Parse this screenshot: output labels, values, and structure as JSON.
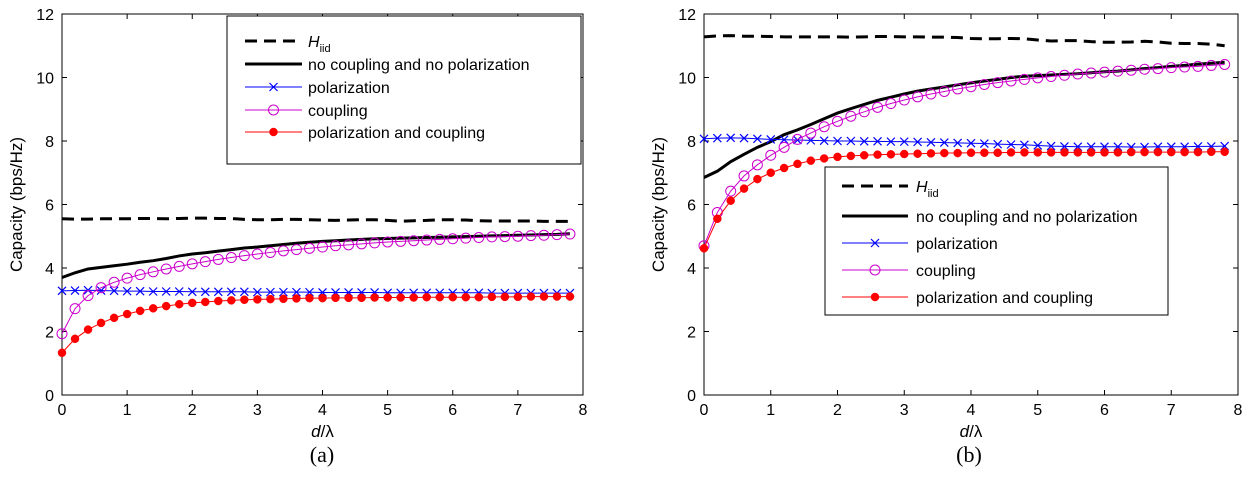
{
  "chart_data": [
    {
      "type": "line",
      "panel_label": "(a)",
      "xlabel_italic": "d",
      "xlabel_rest": "/λ",
      "ylabel": "Capacity (bps/Hz)",
      "xlim": [
        0,
        8
      ],
      "ylim": [
        0,
        12
      ],
      "xticks": [
        "0",
        "1",
        "2",
        "3",
        "4",
        "5",
        "6",
        "7",
        "8"
      ],
      "yticks": [
        "0",
        "2",
        "4",
        "6",
        "8",
        "10",
        "12"
      ],
      "grid": false,
      "legend_position": "top-right",
      "x": [
        0,
        0.2,
        0.4,
        0.6,
        0.8,
        1.0,
        1.2,
        1.4,
        1.6,
        1.8,
        2.0,
        2.2,
        2.4,
        2.6,
        2.8,
        3.0,
        3.2,
        3.4,
        3.6,
        3.8,
        4.0,
        4.2,
        4.4,
        4.6,
        4.8,
        5.0,
        5.2,
        5.4,
        5.6,
        5.8,
        6.0,
        6.2,
        6.4,
        6.6,
        6.8,
        7.0,
        7.2,
        7.4,
        7.6,
        7.8
      ],
      "series": [
        {
          "name_main": "H",
          "name_sub": "iid",
          "style": "dashed",
          "color": "#000000",
          "marker": "none",
          "values": [
            5.55,
            5.54,
            5.54,
            5.55,
            5.55,
            5.55,
            5.56,
            5.56,
            5.55,
            5.56,
            5.57,
            5.57,
            5.56,
            5.56,
            5.53,
            5.52,
            5.52,
            5.53,
            5.53,
            5.52,
            5.51,
            5.5,
            5.51,
            5.52,
            5.52,
            5.5,
            5.47,
            5.49,
            5.5,
            5.52,
            5.52,
            5.51,
            5.49,
            5.48,
            5.48,
            5.48,
            5.48,
            5.47,
            5.47,
            5.47
          ]
        },
        {
          "name": "no coupling and no polarization",
          "style": "solid-thick",
          "color": "#000000",
          "marker": "none",
          "values": [
            3.7,
            3.85,
            3.97,
            4.02,
            4.07,
            4.12,
            4.18,
            4.23,
            4.3,
            4.38,
            4.44,
            4.48,
            4.53,
            4.58,
            4.63,
            4.66,
            4.7,
            4.74,
            4.78,
            4.81,
            4.84,
            4.86,
            4.88,
            4.9,
            4.92,
            4.93,
            4.94,
            4.95,
            4.96,
            4.97,
            4.98,
            4.99,
            5.0,
            5.01,
            5.02,
            5.03,
            5.04,
            5.05,
            5.06,
            5.08
          ]
        },
        {
          "name": "polarization",
          "style": "solid",
          "color": "#0000ff",
          "marker": "x",
          "values": [
            3.28,
            3.29,
            3.3,
            3.29,
            3.28,
            3.27,
            3.27,
            3.26,
            3.26,
            3.26,
            3.25,
            3.25,
            3.25,
            3.25,
            3.25,
            3.24,
            3.24,
            3.24,
            3.24,
            3.24,
            3.23,
            3.23,
            3.23,
            3.23,
            3.23,
            3.22,
            3.22,
            3.22,
            3.22,
            3.22,
            3.22,
            3.22,
            3.22,
            3.21,
            3.21,
            3.21,
            3.21,
            3.21,
            3.21,
            3.21
          ]
        },
        {
          "name": "coupling",
          "style": "solid",
          "color": "#cc00cc",
          "marker": "open-circle",
          "values": [
            1.93,
            2.72,
            3.13,
            3.38,
            3.55,
            3.68,
            3.79,
            3.88,
            3.97,
            4.05,
            4.13,
            4.2,
            4.27,
            4.33,
            4.39,
            4.44,
            4.49,
            4.54,
            4.58,
            4.62,
            4.66,
            4.7,
            4.73,
            4.76,
            4.79,
            4.82,
            4.84,
            4.86,
            4.88,
            4.9,
            4.92,
            4.94,
            4.96,
            4.98,
            4.99,
            5.0,
            5.02,
            5.03,
            5.05,
            5.07
          ]
        },
        {
          "name": "polarization and coupling",
          "style": "solid",
          "color": "#ff0000",
          "marker": "filled-circle",
          "values": [
            1.33,
            1.77,
            2.06,
            2.27,
            2.43,
            2.55,
            2.65,
            2.73,
            2.8,
            2.86,
            2.9,
            2.93,
            2.96,
            2.98,
            3.0,
            3.01,
            3.02,
            3.03,
            3.04,
            3.05,
            3.05,
            3.06,
            3.06,
            3.06,
            3.07,
            3.07,
            3.07,
            3.07,
            3.08,
            3.08,
            3.08,
            3.08,
            3.08,
            3.09,
            3.09,
            3.09,
            3.1,
            3.1,
            3.1,
            3.1
          ]
        }
      ]
    },
    {
      "type": "line",
      "panel_label": "(b)",
      "xlabel_italic": "d",
      "xlabel_rest": "/λ",
      "ylabel": "Capacity (bps/Hz)",
      "xlim": [
        0,
        8
      ],
      "ylim": [
        0,
        12
      ],
      "xticks": [
        "0",
        "1",
        "2",
        "3",
        "4",
        "5",
        "6",
        "7",
        "8"
      ],
      "yticks": [
        "0",
        "2",
        "4",
        "6",
        "8",
        "10",
        "12"
      ],
      "grid": false,
      "legend_position": "center-right",
      "x": [
        0,
        0.2,
        0.4,
        0.6,
        0.8,
        1.0,
        1.2,
        1.4,
        1.6,
        1.8,
        2.0,
        2.2,
        2.4,
        2.6,
        2.8,
        3.0,
        3.2,
        3.4,
        3.6,
        3.8,
        4.0,
        4.2,
        4.4,
        4.6,
        4.8,
        5.0,
        5.2,
        5.4,
        5.6,
        5.8,
        6.0,
        6.2,
        6.4,
        6.6,
        6.8,
        7.0,
        7.2,
        7.4,
        7.6,
        7.8
      ],
      "series": [
        {
          "name_main": "H",
          "name_sub": "iid",
          "style": "dashed",
          "color": "#000000",
          "marker": "none",
          "values": [
            11.28,
            11.31,
            11.32,
            11.3,
            11.3,
            11.29,
            11.28,
            11.28,
            11.28,
            11.28,
            11.28,
            11.27,
            11.28,
            11.29,
            11.29,
            11.28,
            11.28,
            11.27,
            11.27,
            11.26,
            11.23,
            11.22,
            11.22,
            11.23,
            11.22,
            11.18,
            11.15,
            11.16,
            11.16,
            11.13,
            11.11,
            11.11,
            11.12,
            11.14,
            11.12,
            11.08,
            11.07,
            11.07,
            11.05,
            11.0
          ]
        },
        {
          "name": "no coupling and no polarization",
          "style": "solid-thick",
          "color": "#000000",
          "marker": "none",
          "values": [
            6.85,
            7.05,
            7.35,
            7.58,
            7.8,
            7.98,
            8.2,
            8.35,
            8.52,
            8.7,
            8.88,
            9.02,
            9.15,
            9.28,
            9.38,
            9.48,
            9.57,
            9.64,
            9.7,
            9.77,
            9.83,
            9.89,
            9.94,
            10.0,
            10.04,
            10.06,
            10.08,
            10.1,
            10.12,
            10.15,
            10.18,
            10.2,
            10.24,
            10.28,
            10.31,
            10.35,
            10.38,
            10.42,
            10.45,
            10.48
          ]
        },
        {
          "name": "polarization",
          "style": "solid",
          "color": "#0000ff",
          "marker": "x",
          "values": [
            8.07,
            8.09,
            8.1,
            8.09,
            8.07,
            8.05,
            8.04,
            8.03,
            8.02,
            8.01,
            8.0,
            8.0,
            7.99,
            7.99,
            7.98,
            7.98,
            7.97,
            7.96,
            7.95,
            7.94,
            7.93,
            7.92,
            7.9,
            7.89,
            7.88,
            7.86,
            7.84,
            7.83,
            7.82,
            7.82,
            7.82,
            7.82,
            7.81,
            7.81,
            7.82,
            7.82,
            7.82,
            7.83,
            7.83,
            7.84
          ]
        },
        {
          "name": "coupling",
          "style": "solid",
          "color": "#cc00cc",
          "marker": "open-circle",
          "values": [
            4.7,
            5.75,
            6.42,
            6.9,
            7.25,
            7.55,
            7.8,
            8.05,
            8.25,
            8.45,
            8.62,
            8.78,
            8.92,
            9.06,
            9.18,
            9.29,
            9.39,
            9.48,
            9.56,
            9.64,
            9.71,
            9.78,
            9.84,
            9.89,
            9.94,
            9.99,
            10.03,
            10.07,
            10.11,
            10.14,
            10.17,
            10.2,
            10.23,
            10.26,
            10.28,
            10.31,
            10.33,
            10.35,
            10.38,
            10.41
          ]
        },
        {
          "name": "polarization and coupling",
          "style": "solid",
          "color": "#ff0000",
          "marker": "filled-circle",
          "values": [
            4.62,
            5.55,
            6.12,
            6.5,
            6.8,
            7.0,
            7.15,
            7.28,
            7.38,
            7.45,
            7.5,
            7.53,
            7.55,
            7.57,
            7.58,
            7.59,
            7.6,
            7.61,
            7.62,
            7.62,
            7.63,
            7.63,
            7.63,
            7.64,
            7.64,
            7.64,
            7.64,
            7.64,
            7.64,
            7.64,
            7.64,
            7.64,
            7.65,
            7.65,
            7.65,
            7.65,
            7.65,
            7.65,
            7.66,
            7.66
          ]
        }
      ]
    }
  ]
}
